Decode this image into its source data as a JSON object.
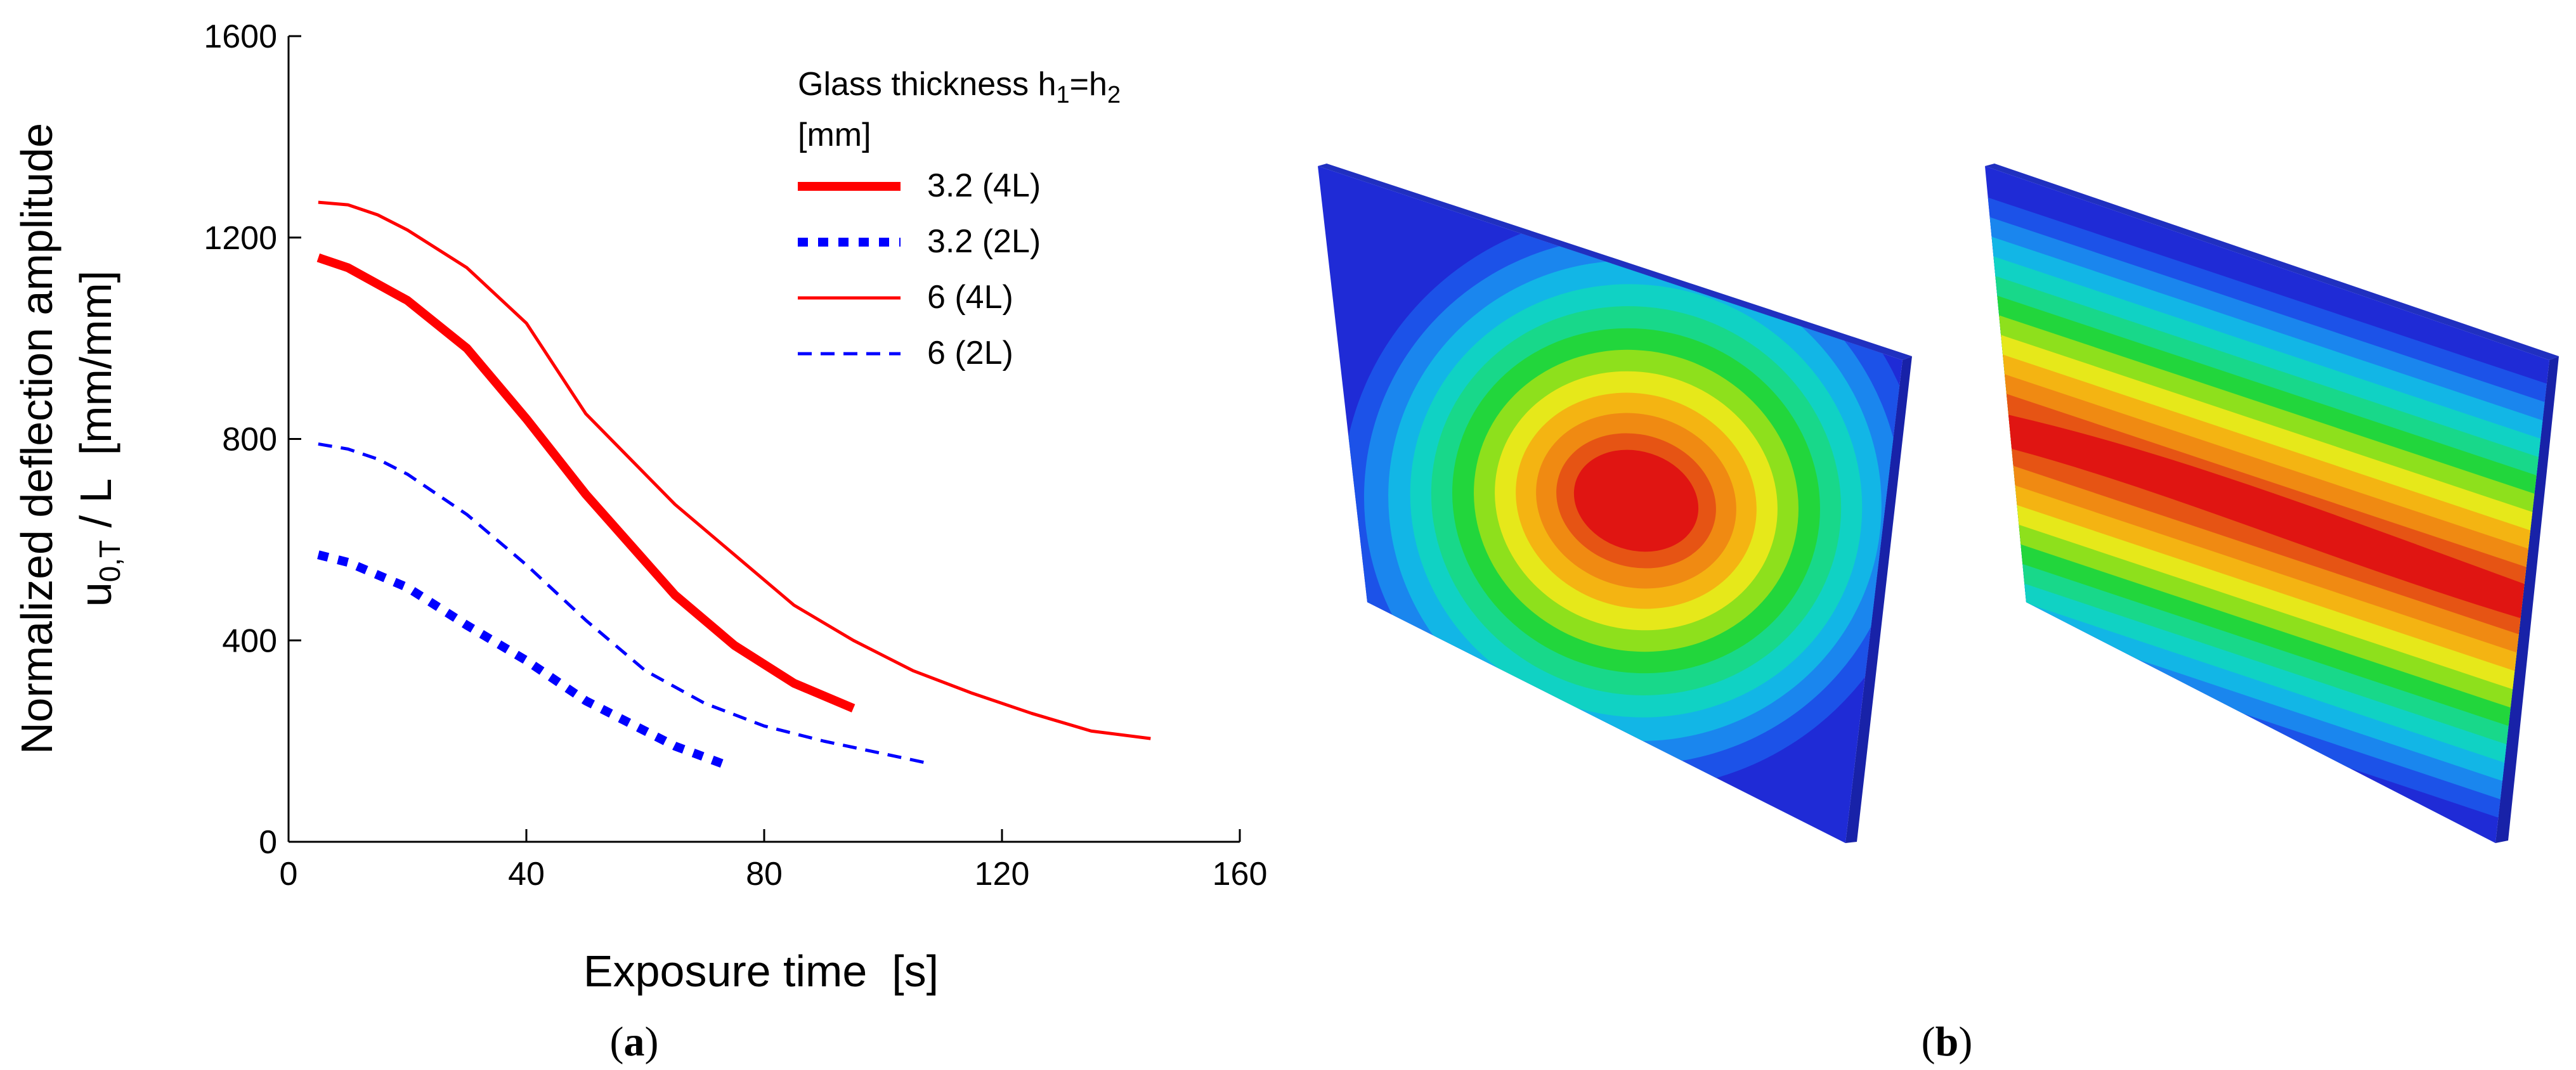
{
  "chart_data": {
    "type": "line",
    "xlabel": "Exposure time  [s]",
    "ylabel_line1": "Normalized deflection amplitude",
    "ylabel_line2": {
      "base": "u",
      "sub": "0,T",
      "rest": " / L  [mm/mm]"
    },
    "xlim": [
      0,
      160
    ],
    "ylim": [
      0,
      1600
    ],
    "xticks": [
      0,
      40,
      80,
      120,
      160
    ],
    "yticks": [
      0,
      400,
      800,
      1200,
      1600
    ],
    "grid": false,
    "legend": {
      "placement": "top-right",
      "title_line1": {
        "base": "Glass thickness h",
        "sub1": "1",
        "mid": "=h",
        "sub2": "2"
      },
      "title_line2": "[mm]"
    },
    "series": [
      {
        "name": "3.2 (4L)",
        "color": "#ff0000",
        "style": "solid-thick",
        "x": [
          5,
          10,
          20,
          30,
          40,
          50,
          65,
          75,
          85,
          95
        ],
        "y": [
          1160,
          1140,
          1075,
          980,
          840,
          690,
          490,
          390,
          315,
          265
        ]
      },
      {
        "name": "3.2 (2L)",
        "color": "#0000ff",
        "style": "dashed-thick",
        "x": [
          5,
          10,
          20,
          30,
          40,
          50,
          65,
          73
        ],
        "y": [
          570,
          555,
          505,
          430,
          360,
          280,
          190,
          155
        ]
      },
      {
        "name": "6 (4L)",
        "color": "#ff0000",
        "style": "solid-thin",
        "x": [
          5,
          10,
          15,
          20,
          30,
          40,
          50,
          65,
          75,
          85,
          95,
          105,
          115,
          125,
          135,
          145
        ],
        "y": [
          1270,
          1265,
          1245,
          1215,
          1140,
          1030,
          850,
          670,
          570,
          470,
          400,
          340,
          295,
          255,
          220,
          205
        ]
      },
      {
        "name": "6 (2L)",
        "color": "#0000ff",
        "style": "dashed-thin",
        "x": [
          5,
          10,
          15,
          20,
          30,
          40,
          50,
          60,
          70,
          80,
          90,
          100,
          108
        ],
        "y": [
          790,
          780,
          760,
          730,
          650,
          550,
          440,
          340,
          275,
          230,
          200,
          175,
          155
        ]
      }
    ]
  },
  "panels": {
    "a_label": "a",
    "b_label": "b"
  },
  "fea_colors": {
    "blue": "#1f2bd6",
    "cyan": "#10d0d8",
    "green": "#1fd22a",
    "yellow": "#e6e81a",
    "orange": "#f08a12",
    "red": "#e01512"
  }
}
